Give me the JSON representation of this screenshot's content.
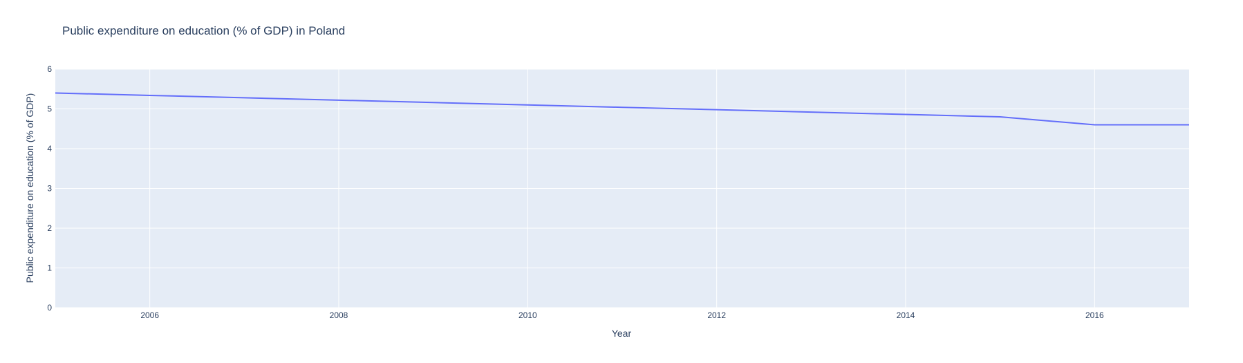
{
  "chart_data": {
    "type": "line",
    "title": "Public expenditure on education (% of GDP) in Poland",
    "xlabel": "Year",
    "ylabel": "Public expenditure on education (% of GDP)",
    "xlim": [
      2005,
      2017
    ],
    "ylim": [
      0,
      6
    ],
    "x_ticks": [
      2006,
      2008,
      2010,
      2012,
      2014,
      2016
    ],
    "y_ticks": [
      0,
      1,
      2,
      3,
      4,
      5,
      6
    ],
    "grid": true,
    "legend": "none",
    "colors": {
      "plot_background": "#e5ecf6",
      "grid": "#ffffff",
      "line": "#636efa",
      "text": "#2a3f5f"
    },
    "series": [
      {
        "x": [
          2005,
          2006,
          2007,
          2008,
          2009,
          2010,
          2011,
          2012,
          2013,
          2014,
          2015,
          2016,
          2017
        ],
        "y": [
          5.4,
          5.34,
          5.28,
          5.22,
          5.16,
          5.1,
          5.04,
          4.98,
          4.92,
          4.86,
          4.8,
          4.6,
          4.6
        ]
      }
    ]
  }
}
